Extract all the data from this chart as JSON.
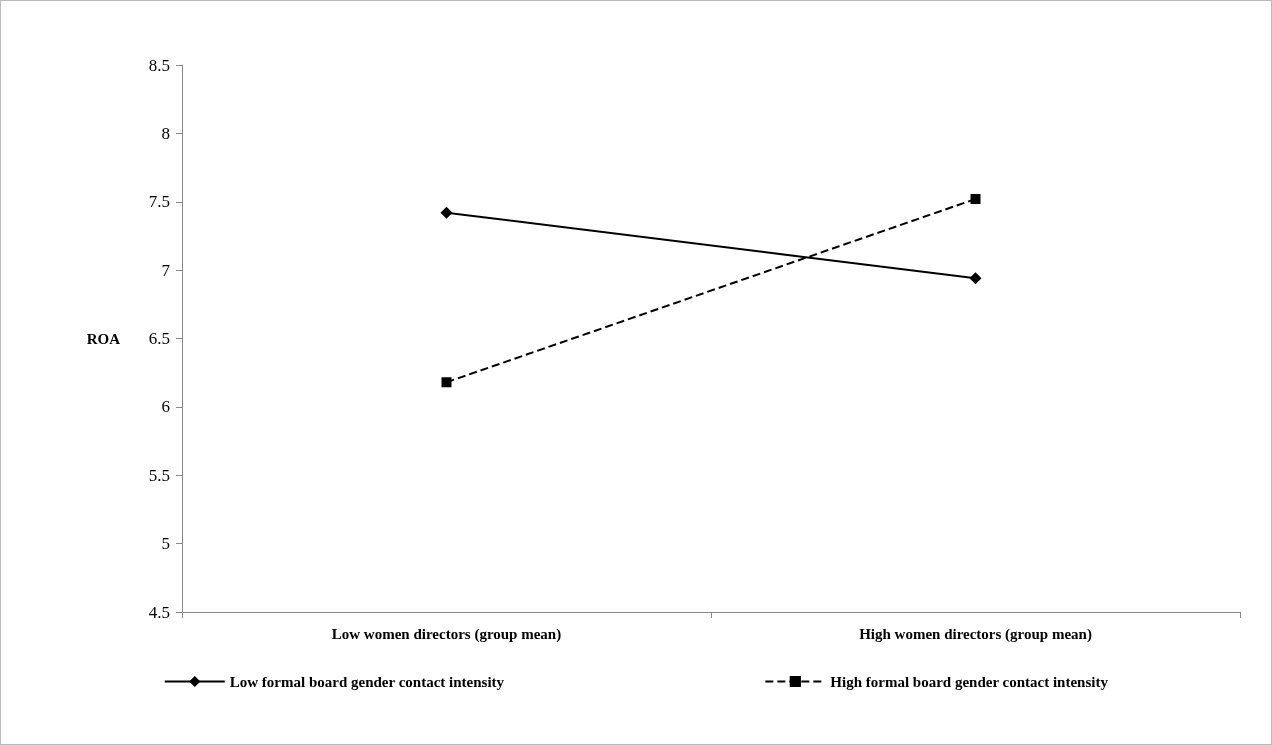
{
  "chart_data": {
    "type": "line",
    "ylabel": "ROA",
    "categories": [
      "Low women directors (group mean)",
      "High women directors (group mean)"
    ],
    "series": [
      {
        "name": "Low formal board gender contact intensity",
        "color": "#000000",
        "values": [
          7.42,
          6.94
        ],
        "marker": "diamond",
        "line_style": "solid"
      },
      {
        "name": "High formal board gender contact intensity",
        "color": "#000000",
        "values": [
          6.18,
          7.52
        ],
        "marker": "square",
        "line_style": "dashed"
      }
    ],
    "ylim": [
      4.5,
      8.5
    ],
    "yticks": [
      4.5,
      5,
      5.5,
      6,
      6.5,
      7,
      7.5,
      8,
      8.5
    ],
    "grid": false,
    "legend": "bottom"
  }
}
